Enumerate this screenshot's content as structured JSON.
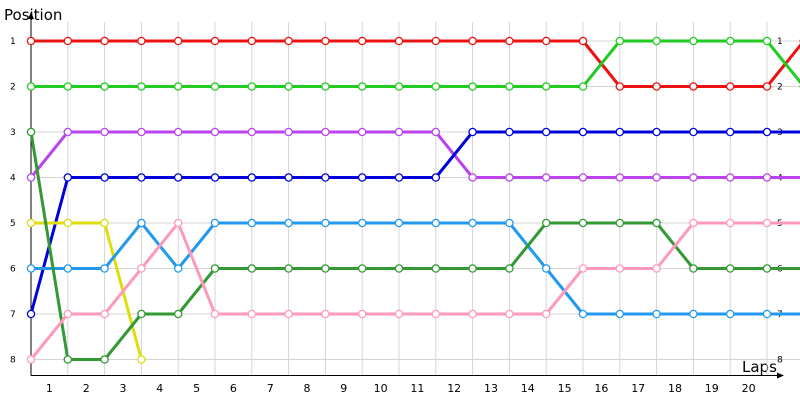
{
  "chart_data": {
    "type": "line",
    "xlabel": "Laps",
    "ylabel": "Position",
    "x_ticks": [
      "1",
      "2",
      "3",
      "4",
      "5",
      "6",
      "7",
      "8",
      "9",
      "10",
      "11",
      "12",
      "13",
      "14",
      "15",
      "16",
      "17",
      "18",
      "19",
      "20"
    ],
    "y_ticks": [
      "1",
      "2",
      "3",
      "4",
      "5",
      "6",
      "7",
      "8"
    ],
    "xlim": [
      0,
      21
    ],
    "ylim": [
      1,
      8
    ],
    "y_inverted": true,
    "grid": true,
    "legend": "none",
    "series": [
      {
        "color": "#ee1111",
        "values": [
          [
            0,
            1
          ],
          [
            1,
            1
          ],
          [
            2,
            1
          ],
          [
            3,
            1
          ],
          [
            4,
            1
          ],
          [
            5,
            1
          ],
          [
            6,
            1
          ],
          [
            7,
            1
          ],
          [
            8,
            1
          ],
          [
            9,
            1
          ],
          [
            10,
            1
          ],
          [
            11,
            1
          ],
          [
            12,
            1
          ],
          [
            13,
            1
          ],
          [
            14,
            1
          ],
          [
            15,
            1
          ],
          [
            16,
            2
          ],
          [
            17,
            2
          ],
          [
            18,
            2
          ],
          [
            19,
            2
          ],
          [
            20,
            2
          ],
          [
            21,
            1
          ]
        ]
      },
      {
        "color": "#22cc22",
        "values": [
          [
            0,
            2
          ],
          [
            1,
            2
          ],
          [
            2,
            2
          ],
          [
            3,
            2
          ],
          [
            4,
            2
          ],
          [
            5,
            2
          ],
          [
            6,
            2
          ],
          [
            7,
            2
          ],
          [
            8,
            2
          ],
          [
            9,
            2
          ],
          [
            10,
            2
          ],
          [
            11,
            2
          ],
          [
            12,
            2
          ],
          [
            13,
            2
          ],
          [
            14,
            2
          ],
          [
            15,
            2
          ],
          [
            16,
            1
          ],
          [
            17,
            1
          ],
          [
            18,
            1
          ],
          [
            19,
            1
          ],
          [
            20,
            1
          ],
          [
            21,
            2
          ]
        ]
      },
      {
        "color": "#bb44ee",
        "values": [
          [
            0,
            4
          ],
          [
            1,
            3
          ],
          [
            2,
            3
          ],
          [
            3,
            3
          ],
          [
            4,
            3
          ],
          [
            5,
            3
          ],
          [
            6,
            3
          ],
          [
            7,
            3
          ],
          [
            8,
            3
          ],
          [
            9,
            3
          ],
          [
            10,
            3
          ],
          [
            11,
            3
          ],
          [
            12,
            4
          ],
          [
            13,
            4
          ],
          [
            14,
            4
          ],
          [
            15,
            4
          ],
          [
            16,
            4
          ],
          [
            17,
            4
          ],
          [
            18,
            4
          ],
          [
            19,
            4
          ],
          [
            20,
            4
          ],
          [
            21,
            4
          ]
        ]
      },
      {
        "color": "#0000dd",
        "values": [
          [
            0,
            7
          ],
          [
            1,
            4
          ],
          [
            2,
            4
          ],
          [
            3,
            4
          ],
          [
            4,
            4
          ],
          [
            5,
            4
          ],
          [
            6,
            4
          ],
          [
            7,
            4
          ],
          [
            8,
            4
          ],
          [
            9,
            4
          ],
          [
            10,
            4
          ],
          [
            11,
            4
          ],
          [
            12,
            3
          ],
          [
            13,
            3
          ],
          [
            14,
            3
          ],
          [
            15,
            3
          ],
          [
            16,
            3
          ],
          [
            17,
            3
          ],
          [
            18,
            3
          ],
          [
            19,
            3
          ],
          [
            20,
            3
          ],
          [
            21,
            3
          ]
        ]
      },
      {
        "color": "#dddd11",
        "values": [
          [
            0,
            5
          ],
          [
            1,
            5
          ],
          [
            2,
            5
          ],
          [
            3,
            8
          ]
        ]
      },
      {
        "color": "#2299ee",
        "values": [
          [
            0,
            6
          ],
          [
            1,
            6
          ],
          [
            2,
            6
          ],
          [
            3,
            5
          ],
          [
            4,
            6
          ],
          [
            5,
            5
          ],
          [
            6,
            5
          ],
          [
            7,
            5
          ],
          [
            8,
            5
          ],
          [
            9,
            5
          ],
          [
            10,
            5
          ],
          [
            11,
            5
          ],
          [
            12,
            5
          ],
          [
            13,
            5
          ],
          [
            14,
            6
          ],
          [
            15,
            7
          ],
          [
            16,
            7
          ],
          [
            17,
            7
          ],
          [
            18,
            7
          ],
          [
            19,
            7
          ],
          [
            20,
            7
          ],
          [
            21,
            7
          ]
        ]
      },
      {
        "color": "#339933",
        "values": [
          [
            0,
            3
          ],
          [
            1,
            8
          ],
          [
            2,
            8
          ],
          [
            3,
            7
          ],
          [
            4,
            7
          ],
          [
            5,
            6
          ],
          [
            6,
            6
          ],
          [
            7,
            6
          ],
          [
            8,
            6
          ],
          [
            9,
            6
          ],
          [
            10,
            6
          ],
          [
            11,
            6
          ],
          [
            12,
            6
          ],
          [
            13,
            6
          ],
          [
            14,
            5
          ],
          [
            15,
            5
          ],
          [
            16,
            5
          ],
          [
            17,
            5
          ],
          [
            18,
            6
          ],
          [
            19,
            6
          ],
          [
            20,
            6
          ],
          [
            21,
            6
          ]
        ]
      },
      {
        "color": "#ff99bb",
        "values": [
          [
            0,
            8
          ],
          [
            1,
            7
          ],
          [
            2,
            7
          ],
          [
            3,
            6
          ],
          [
            4,
            5
          ],
          [
            5,
            7
          ],
          [
            6,
            7
          ],
          [
            7,
            7
          ],
          [
            8,
            7
          ],
          [
            9,
            7
          ],
          [
            10,
            7
          ],
          [
            11,
            7
          ],
          [
            12,
            7
          ],
          [
            13,
            7
          ],
          [
            14,
            7
          ],
          [
            15,
            6
          ],
          [
            16,
            6
          ],
          [
            17,
            6
          ],
          [
            18,
            5
          ],
          [
            19,
            5
          ],
          [
            20,
            5
          ],
          [
            21,
            5
          ]
        ]
      }
    ]
  }
}
